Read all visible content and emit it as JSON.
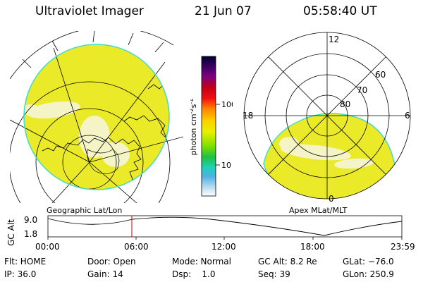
{
  "header": {
    "instrument": "Ultraviolet Imager",
    "date": "21 Jun 07",
    "time": "05:58:40 UT"
  },
  "colors": {
    "disk": "#eaea28",
    "disk_bright": "#f4f4c6",
    "disk_edge": "#44dcc8"
  },
  "colorbar": {
    "unit_html": "photon cm<tspan baseline-shift='super' font-size='8'>-2</tspan>s<tspan baseline-shift='super' font-size='8'>-1</tspan>",
    "tick_100": "100",
    "tick_10": "10"
  },
  "maps": {
    "geo_caption": "Geographic Lat/Lon",
    "apex_caption": "Apex MLat/MLT",
    "apex_labels": {
      "mlt_12": "12",
      "mlt_18": "18",
      "mlt_6": "6",
      "mlt_0": "0",
      "lat_60": "60",
      "lat_70": "70",
      "lat_80": "80"
    }
  },
  "timeline": {
    "axis_label": "GC Alt",
    "y_ticks": [
      "9.0",
      "1.8"
    ],
    "x_ticks": [
      "00:00",
      "06:00",
      "12:00",
      "18:00",
      "23:59"
    ]
  },
  "footer": {
    "col1": {
      "flt": "Flt: HOME",
      "ip": "IP: 36.0"
    },
    "col2": {
      "door": "Door: Open",
      "gain": "Gain: 14"
    },
    "col3": {
      "mode": "Mode: Normal",
      "dsp": "Dsp:    1.0"
    },
    "col4": {
      "gcalt": "GC Alt: 8.2 Re",
      "seq": "Seq: 39"
    },
    "col5": {
      "glat": "GLat: −76.0",
      "glon": "GLon: 250.9"
    }
  }
}
